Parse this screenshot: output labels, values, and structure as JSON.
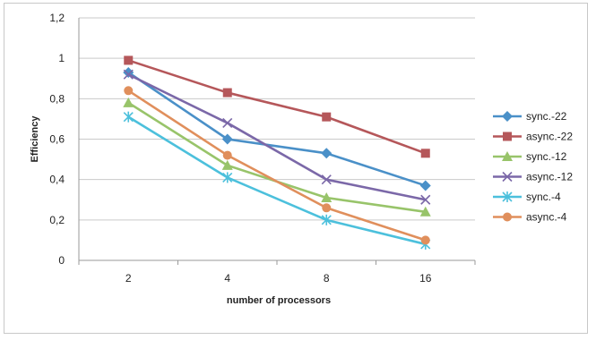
{
  "chart_data": {
    "type": "line",
    "title": "",
    "xlabel": "number of processors",
    "ylabel": "Efficiency",
    "categories": [
      "2",
      "4",
      "8",
      "16"
    ],
    "ylim": [
      0,
      1.2
    ],
    "yticks": [
      "0",
      "0,2",
      "0,4",
      "0,6",
      "0,8",
      "1",
      "1,2"
    ],
    "grid": true,
    "legend_position": "right",
    "series": [
      {
        "name": "sync.-22",
        "color": "#4a90c8",
        "marker": "diamond",
        "values": [
          0.93,
          0.6,
          0.53,
          0.37
        ]
      },
      {
        "name": "async.-22",
        "color": "#b5575a",
        "marker": "square",
        "values": [
          0.99,
          0.83,
          0.71,
          0.53
        ]
      },
      {
        "name": "sync.-12",
        "color": "#98c46a",
        "marker": "triangle",
        "values": [
          0.78,
          0.47,
          0.31,
          0.24
        ]
      },
      {
        "name": "async.-12",
        "color": "#7b68a8",
        "marker": "x",
        "values": [
          0.92,
          0.68,
          0.4,
          0.3
        ]
      },
      {
        "name": "sync.-4",
        "color": "#4cc0dc",
        "marker": "star",
        "values": [
          0.71,
          0.41,
          0.2,
          0.08
        ]
      },
      {
        "name": "async.-4",
        "color": "#e08f5c",
        "marker": "circle",
        "values": [
          0.84,
          0.52,
          0.26,
          0.1
        ]
      }
    ]
  }
}
